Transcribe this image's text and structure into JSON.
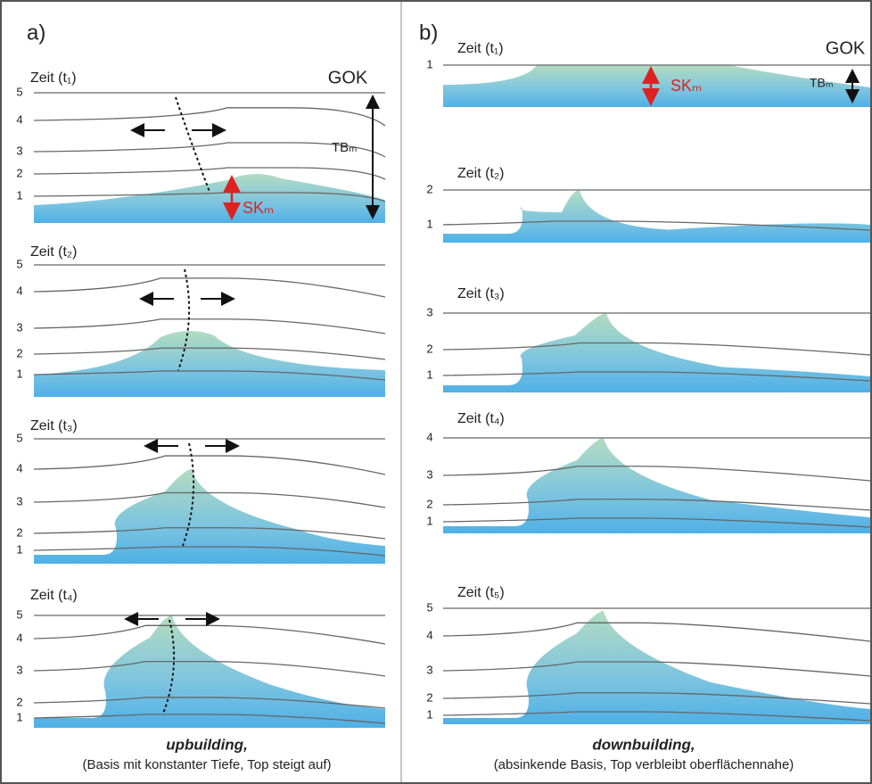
{
  "panel_a": {
    "label": "a)",
    "caption": "upbuilding,",
    "note": "(Basis mit konstanter Tiefe, Top steigt auf)",
    "steps": [
      {
        "title": "Zeit (t₁)",
        "layers": [
          5,
          4,
          3,
          2,
          1
        ],
        "annotations": [
          "GOK",
          "TBₘ",
          "SKₘ"
        ]
      },
      {
        "title": "Zeit (t₂)",
        "layers": [
          5,
          4,
          3,
          2,
          1
        ]
      },
      {
        "title": "Zeit (t₃)",
        "layers": [
          5,
          4,
          3,
          2,
          1
        ]
      },
      {
        "title": "Zeit (t₄)",
        "layers": [
          5,
          4,
          3,
          2,
          1
        ]
      }
    ]
  },
  "panel_b": {
    "label": "b)",
    "caption": "downbuilding,",
    "note": "(absinkende Basis, Top verbleibt oberflächennahe)",
    "steps": [
      {
        "title": "Zeit (t₁)",
        "layers": [
          1
        ],
        "annotations": [
          "GOK",
          "TBₘ",
          "SKₘ"
        ]
      },
      {
        "title": "Zeit (t₂)",
        "layers": [
          2,
          1
        ]
      },
      {
        "title": "Zeit (t₃)",
        "layers": [
          3,
          2,
          1
        ]
      },
      {
        "title": "Zeit (t₄)",
        "layers": [
          4,
          3,
          2,
          1
        ]
      },
      {
        "title": "Zeit (t₅)",
        "layers": [
          5,
          4,
          3,
          2,
          1
        ]
      }
    ]
  }
}
